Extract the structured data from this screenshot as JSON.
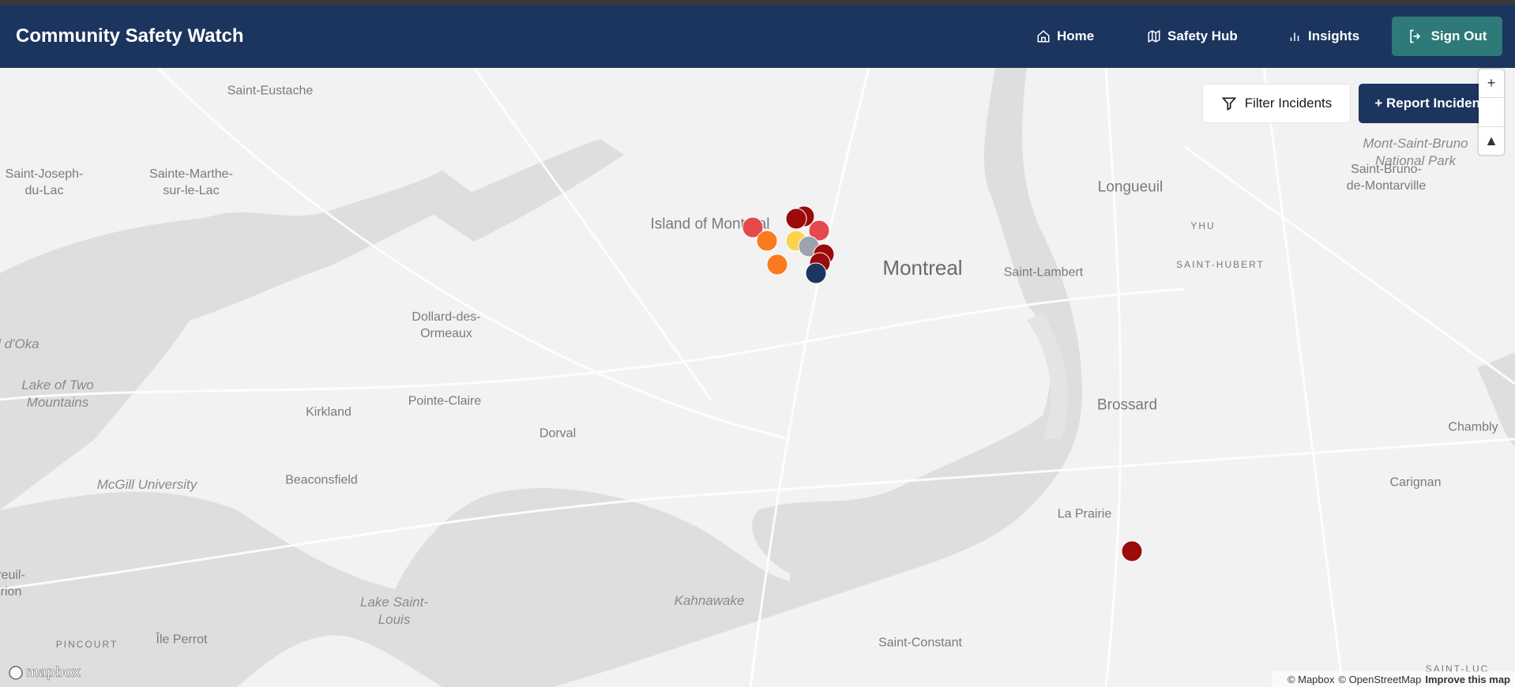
{
  "header": {
    "title": "Community Safety Watch",
    "nav": [
      {
        "label": "Home",
        "icon": "home-icon"
      },
      {
        "label": "Safety Hub",
        "icon": "map-icon"
      },
      {
        "label": "Insights",
        "icon": "bar-chart-icon"
      }
    ],
    "sign_out": "Sign Out"
  },
  "map_controls": {
    "filter": "Filter Incidents",
    "report": "+ Report Incident",
    "zoom_in": "+",
    "compass": "▲"
  },
  "map_labels": [
    "Saint-Eustache",
    "Saint-Joseph-du-Lac",
    "Sainte-Marthe-sur-le-Lac",
    "Island of Montreal",
    "Montreal",
    "Longueuil",
    "YHU",
    "SAINT-HUBERT",
    "Saint-Lambert",
    "Mont-Saint-Bruno National Park",
    "Saint-Bruno-de-Montarville",
    "Dollard-des-Ormeaux",
    "Lake of Two Mountains",
    "Pointe-Claire",
    "Kirkland",
    "Dorval",
    "Beaconsfield",
    "McGill University",
    "Brossard",
    "Chambly",
    "Carignan",
    "La Prairie",
    "Lake Saint-Louis",
    "Kahnawake",
    "Saint-Constant",
    "Île Perrot",
    "PINCOURT",
    "nal d'Oka",
    "reuil-rion",
    "SAINT-LUC"
  ],
  "marker_colors": {
    "critical": "#9b0b0b",
    "high": "#e5484d",
    "medium": "#f97b1d",
    "low": "#fcd34d",
    "unknown": "#9ca3af",
    "info": "#1c355e"
  },
  "markers": [
    "high",
    "medium",
    "medium",
    "critical",
    "critical",
    "high",
    "low",
    "unknown",
    "critical",
    "critical",
    "info",
    "critical"
  ],
  "attribution": {
    "mapbox": "© Mapbox",
    "osm": "© OpenStreetMap",
    "improve": "Improve this map",
    "logo": "mapbox"
  }
}
